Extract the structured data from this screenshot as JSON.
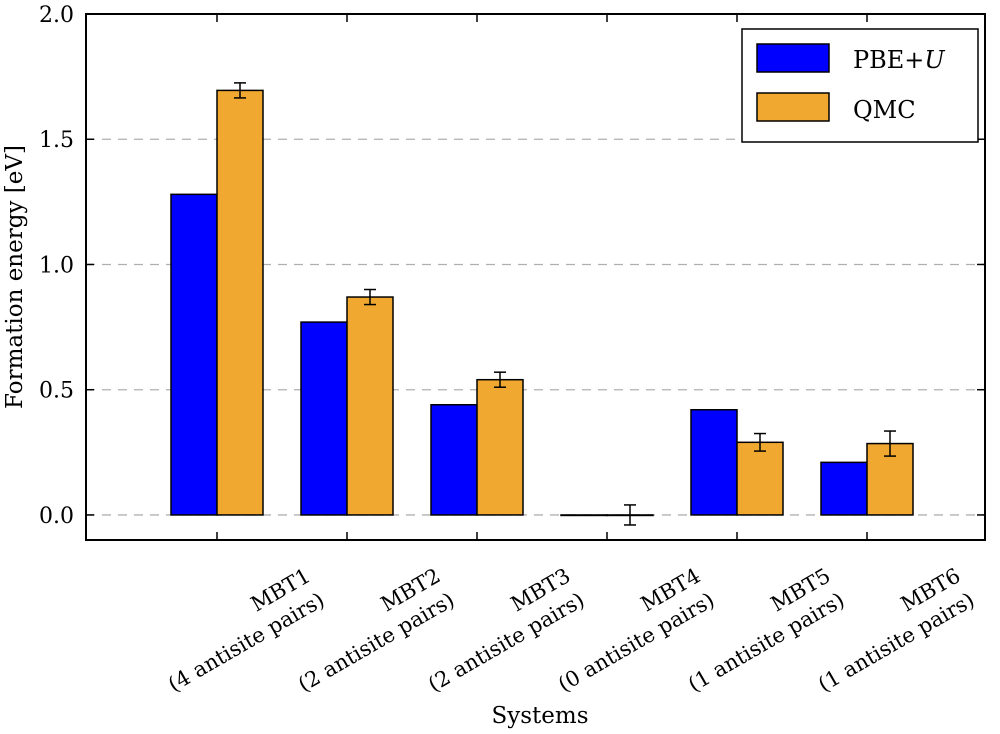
{
  "chart_data": {
    "type": "bar",
    "title": "",
    "xlabel": "Systems",
    "ylabel": "Formation energy [eV]",
    "ylim": [
      -0.1,
      2.0
    ],
    "yticks": [
      "0.0",
      "0.5",
      "1.0",
      "1.5",
      "2.0"
    ],
    "grid": "y-dashed",
    "legend_position": "top-right",
    "categories": [
      {
        "name": "MBT1",
        "note": "(4 antisite pairs)"
      },
      {
        "name": "MBT2",
        "note": "(2 antisite pairs)"
      },
      {
        "name": "MBT3",
        "note": "(2 antisite pairs)"
      },
      {
        "name": "MBT4",
        "note": "(0 antisite pairs)"
      },
      {
        "name": "MBT5",
        "note": "(1 antisite pairs)"
      },
      {
        "name": "MBT6",
        "note": "(1 antisite pairs)"
      }
    ],
    "series": [
      {
        "name": "PBE+",
        "name_italic": "U",
        "color": "#0000ff",
        "values": [
          1.28,
          0.77,
          0.44,
          0.0,
          0.42,
          0.21
        ]
      },
      {
        "name": "QMC",
        "color": "#f0a830",
        "values": [
          1.695,
          0.87,
          0.54,
          0.0,
          0.29,
          0.285
        ],
        "errors": [
          0.03,
          0.03,
          0.03,
          0.04,
          0.035,
          0.05
        ]
      }
    ]
  }
}
